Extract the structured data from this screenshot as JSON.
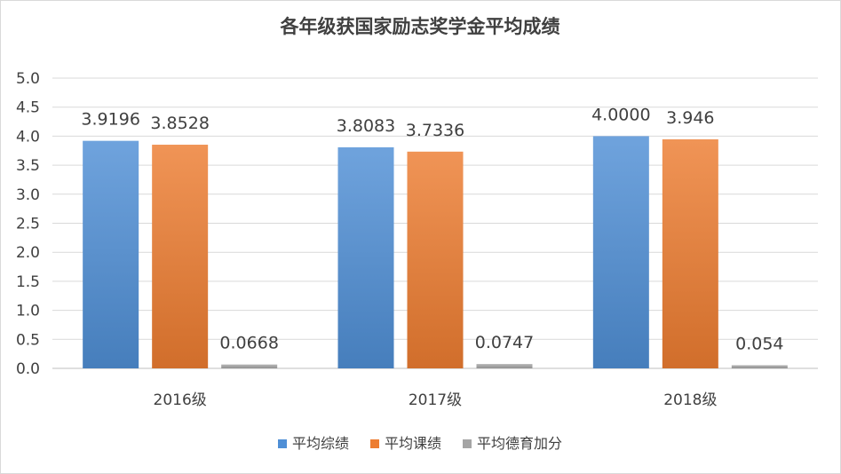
{
  "chart_data": {
    "type": "bar",
    "title": "各年级获国家励志奖学金平均成绩",
    "xlabel": "",
    "ylabel": "",
    "categories": [
      "2016级",
      "2017级",
      "2018级"
    ],
    "series": [
      {
        "name": "平均综绩",
        "values": [
          3.9196,
          3.8083,
          4.0
        ],
        "labels": [
          "3.9196",
          "3.8083",
          "4.0000"
        ],
        "color": "#4f8fd6"
      },
      {
        "name": "平均课绩",
        "values": [
          3.8528,
          3.7336,
          3.946
        ],
        "labels": [
          "3.8528",
          "3.7336",
          "3.946"
        ],
        "color": "#ed7d31"
      },
      {
        "name": "平均德育加分",
        "values": [
          0.0668,
          0.0747,
          0.054
        ],
        "labels": [
          "0.0668",
          "0.0747",
          "0.054"
        ],
        "color": "#a5a5a5"
      }
    ],
    "ylim": [
      0,
      5
    ],
    "yticks": [
      "0.0",
      "0.5",
      "1.0",
      "1.5",
      "2.0",
      "2.5",
      "3.0",
      "3.5",
      "4.0",
      "4.5",
      "5.0"
    ],
    "grid": true,
    "legend": "bottom"
  }
}
